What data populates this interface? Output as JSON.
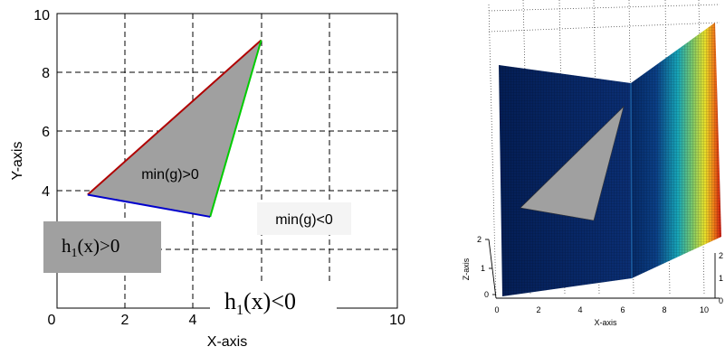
{
  "left_plot": {
    "xlabel": "X-axis",
    "ylabel": "Y-axis",
    "x_ticks": [
      "0",
      "2",
      "4",
      "10"
    ],
    "y_ticks": [
      "10",
      "8",
      "6",
      "4"
    ],
    "region_inside": "min(g)>0",
    "region_outside": "min(g)<0",
    "h_pos": {
      "base": "h",
      "sub": "1",
      "rest": "(x)>0"
    },
    "h_neg": {
      "base": "h",
      "sub": "1",
      "rest": "(x)<0"
    },
    "triangle": [
      [
        0.9,
        3.85
      ],
      [
        4.5,
        3.1
      ],
      [
        6.0,
        9.1
      ]
    ],
    "xlim": [
      0,
      10
    ],
    "ylim": [
      0,
      10
    ],
    "edge_colors": {
      "top": "#b00000",
      "right": "#00cc00",
      "bottom": "#0000cc"
    },
    "fill_color": "#a0a0a0"
  },
  "right_plot": {
    "xlabel": "X-axis",
    "zlabel": "Z-axis",
    "x_ticks": [
      "0",
      "2",
      "4",
      "6",
      "8",
      "10"
    ],
    "z_ticks_left": [
      "2",
      "1",
      "0"
    ],
    "z_ticks_right": [
      "2",
      "1",
      "0"
    ]
  }
}
